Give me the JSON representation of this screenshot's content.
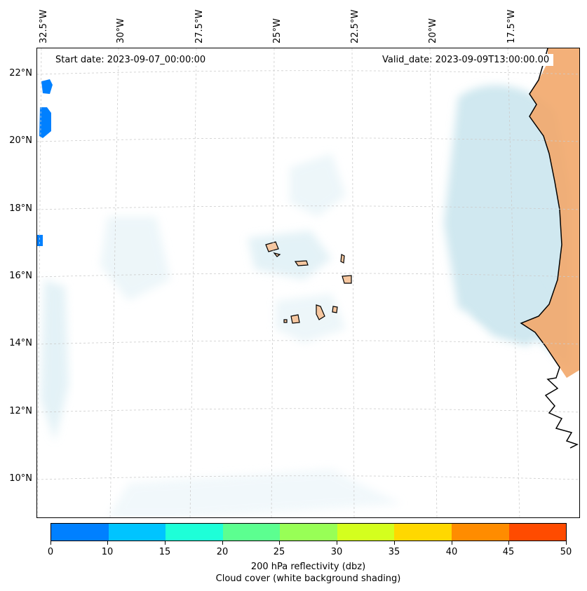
{
  "map": {
    "start_date": "Start date: 2023-09-07_00:00:00",
    "valid_date": "Valid_date: 2023-09-09T13:00:00.00",
    "longitude_labels": [
      "32.5°W",
      "30°W",
      "27.5°W",
      "25°W",
      "22.5°W",
      "20°W",
      "17.5°W"
    ],
    "latitude_labels": [
      "22°N",
      "20°N",
      "18°N",
      "16°N",
      "14°N",
      "12°N",
      "10°N"
    ],
    "lat_range": [
      8.9,
      22.8
    ],
    "lon_range": [
      -33.0,
      -15.7
    ]
  },
  "colorbar": {
    "ticks": [
      "0",
      "10",
      "15",
      "20",
      "25",
      "30",
      "35",
      "40",
      "45",
      "50"
    ],
    "colors": [
      "#0080ff",
      "#00c4ff",
      "#1effd8",
      "#5cff90",
      "#98ff56",
      "#d4ff1e",
      "#ffd800",
      "#ff8c00",
      "#ff4b00"
    ],
    "label_line1": "200 hPa reflectivity (dbz)",
    "label_line2": "Cloud cover (white background shading)"
  },
  "colors": {
    "cloud_shading": "#a9d5e3",
    "land_fill": "#f2a76a",
    "reflectivity_low": "#0080ff",
    "coastline": "#000000",
    "gridline": "#cccccc"
  }
}
